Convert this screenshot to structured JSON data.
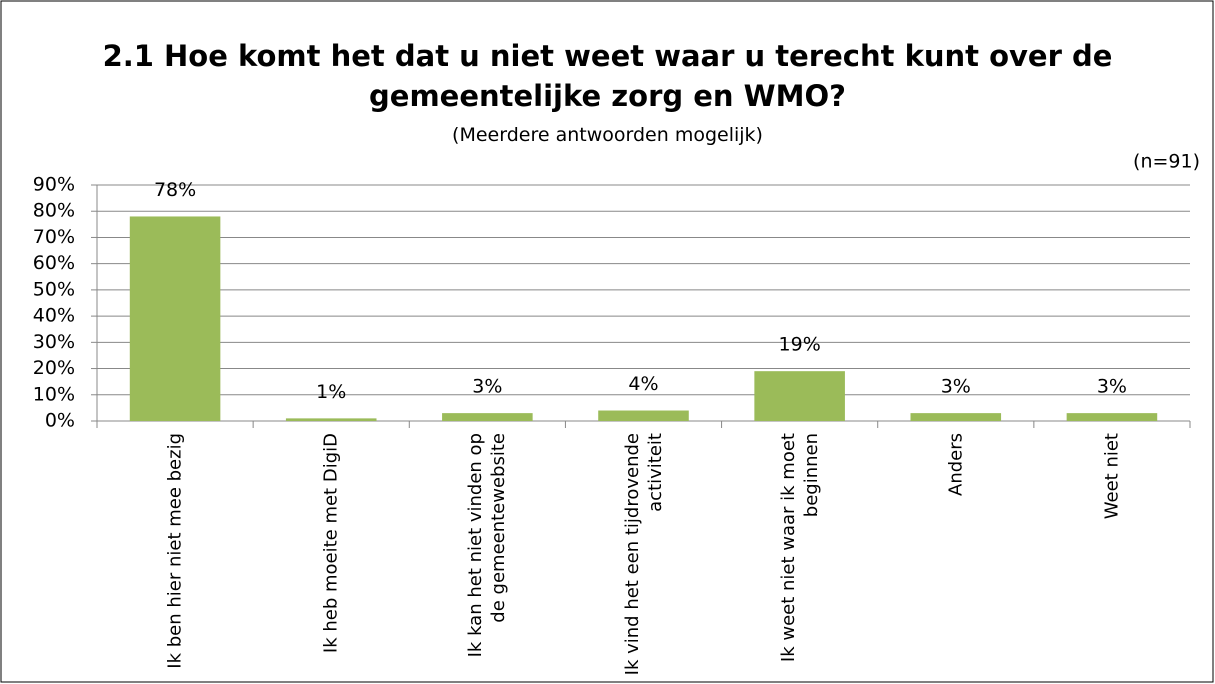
{
  "chart_data": {
    "type": "bar",
    "title": "2.1 Hoe komt het dat u niet weet waar u terecht kunt over de gemeentelijke zorg en WMO?",
    "subtitle": "(Meerdere antwoorden mogelijk)",
    "annotation": "(n=91)",
    "categories": [
      "Ik ben hier niet mee bezig",
      "Ik heb moeite met DigiD",
      "Ik kan het niet vinden op de gemeentewebsite",
      "Ik vind het een tijdrovende activiteit",
      "Ik weet niet waar ik moet beginnen",
      "Anders",
      "Weet niet"
    ],
    "values": [
      78,
      1,
      3,
      4,
      19,
      3,
      3
    ],
    "value_labels": [
      "78%",
      "1%",
      "3%",
      "4%",
      "19%",
      "3%",
      "3%"
    ],
    "color": "#9bbb59",
    "ylim": [
      0,
      90
    ],
    "yticks": [
      {
        "value": 0,
        "label": "0%"
      },
      {
        "value": 10,
        "label": "10%"
      },
      {
        "value": 20,
        "label": "20%"
      },
      {
        "value": 30,
        "label": "30%"
      },
      {
        "value": 40,
        "label": "40%"
      },
      {
        "value": 50,
        "label": "50%"
      },
      {
        "value": 60,
        "label": "60%"
      },
      {
        "value": 70,
        "label": "70%"
      },
      {
        "value": 80,
        "label": "80%"
      },
      {
        "value": 90,
        "label": "90%"
      }
    ],
    "grid": true
  }
}
